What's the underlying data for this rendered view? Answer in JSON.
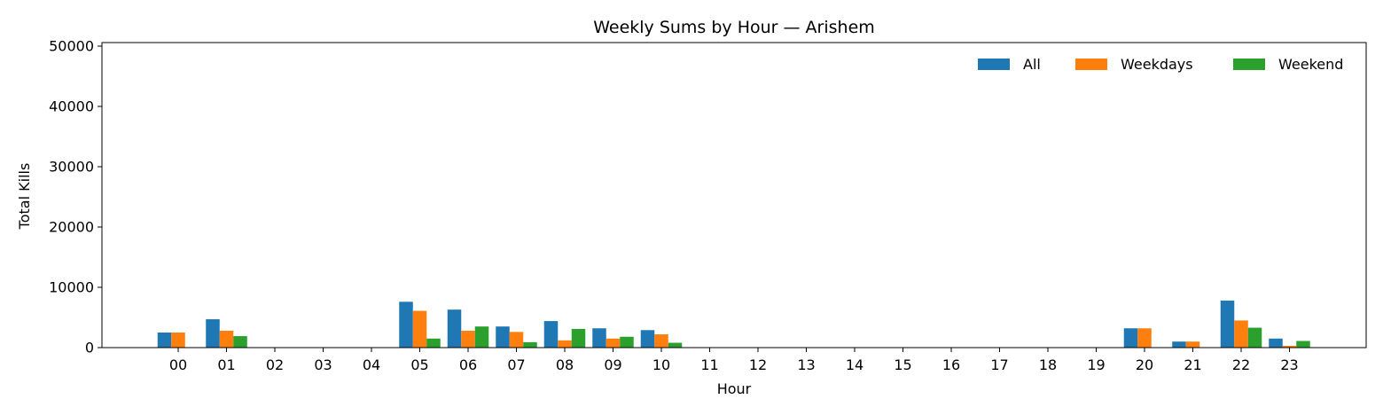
{
  "chart_data": {
    "type": "bar",
    "title": "Weekly Sums by Hour — Arishem",
    "xlabel": "Hour",
    "ylabel": "Total Kills",
    "ylim": [
      0,
      50000
    ],
    "yticks": [
      "0",
      "10000",
      "20000",
      "30000",
      "40000",
      "50000"
    ],
    "categories": [
      "00",
      "01",
      "02",
      "03",
      "04",
      "05",
      "06",
      "07",
      "08",
      "09",
      "10",
      "11",
      "12",
      "13",
      "14",
      "15",
      "16",
      "17",
      "18",
      "19",
      "20",
      "21",
      "22",
      "23"
    ],
    "grid": false,
    "legend_position": "top-right",
    "series": [
      {
        "name": "All",
        "color": "#1f77b4",
        "values": [
          2500,
          4700,
          0,
          0,
          0,
          7600,
          6300,
          3500,
          4400,
          3200,
          2900,
          0,
          0,
          0,
          0,
          0,
          0,
          0,
          0,
          0,
          3200,
          1000,
          7800,
          1500
        ]
      },
      {
        "name": "Weekdays",
        "color": "#ff7f0e",
        "values": [
          2500,
          2800,
          0,
          0,
          0,
          6100,
          2800,
          2600,
          1200,
          1500,
          2200,
          0,
          0,
          0,
          0,
          0,
          0,
          0,
          0,
          0,
          3200,
          1000,
          4500,
          300
        ]
      },
      {
        "name": "Weekend",
        "color": "#2ca02c",
        "values": [
          0,
          1900,
          0,
          0,
          0,
          1500,
          3500,
          900,
          3100,
          1800,
          800,
          0,
          0,
          0,
          0,
          0,
          0,
          0,
          0,
          0,
          0,
          0,
          3300,
          1100
        ]
      }
    ]
  }
}
